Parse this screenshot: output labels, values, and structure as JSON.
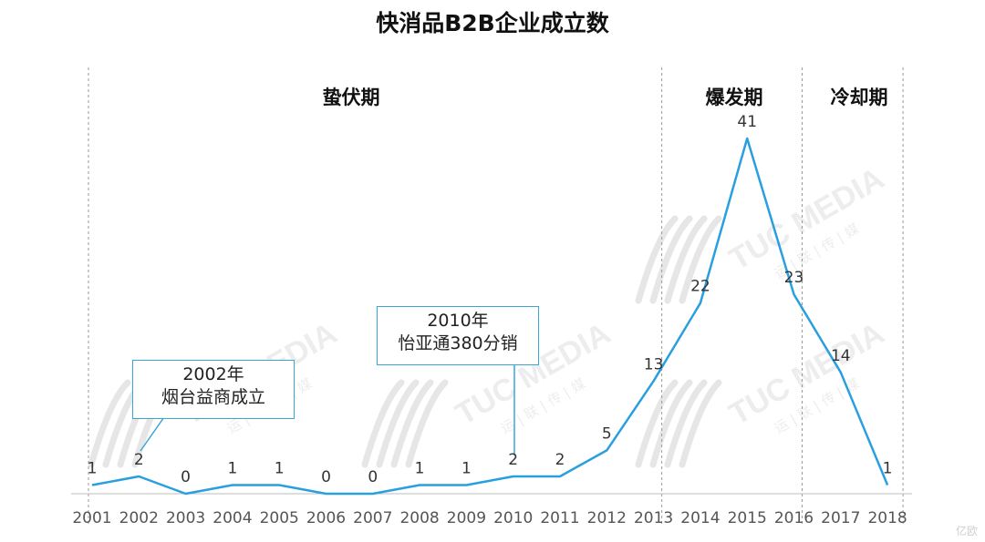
{
  "chart_data": {
    "type": "line",
    "title": "快消品B2B企业成立数",
    "xlabel": "",
    "ylabel": "",
    "categories": [
      "2001",
      "2002",
      "2003",
      "2004",
      "2005",
      "2006",
      "2007",
      "2008",
      "2009",
      "2010",
      "2011",
      "2012",
      "2013",
      "2014",
      "2015",
      "2016",
      "2017",
      "2018"
    ],
    "series": [
      {
        "values": [
          1,
          2,
          0,
          1,
          1,
          0,
          0,
          1,
          1,
          2,
          2,
          5,
          13,
          22,
          41,
          23,
          14,
          1
        ]
      }
    ],
    "ylim": [
      0,
      41
    ],
    "grid": false,
    "line_color": "#2a9fe0",
    "phases": [
      {
        "label": "蛰伏期",
        "from": "2001",
        "to": "2013"
      },
      {
        "label": "爆发期",
        "from": "2013",
        "to": "2016"
      },
      {
        "label": "冷却期",
        "from": "2016",
        "to": "2018"
      }
    ],
    "annotations": [
      {
        "year": "2002",
        "lines": [
          "2002年",
          "烟台益商成立"
        ]
      },
      {
        "year": "2010",
        "lines": [
          "2010年",
          "怡亚通380分销"
        ]
      }
    ]
  },
  "watermark": {
    "brand": "TUC MEDIA",
    "sub": "运 | 联 | 传 | 媒",
    "corner": "亿欧"
  }
}
